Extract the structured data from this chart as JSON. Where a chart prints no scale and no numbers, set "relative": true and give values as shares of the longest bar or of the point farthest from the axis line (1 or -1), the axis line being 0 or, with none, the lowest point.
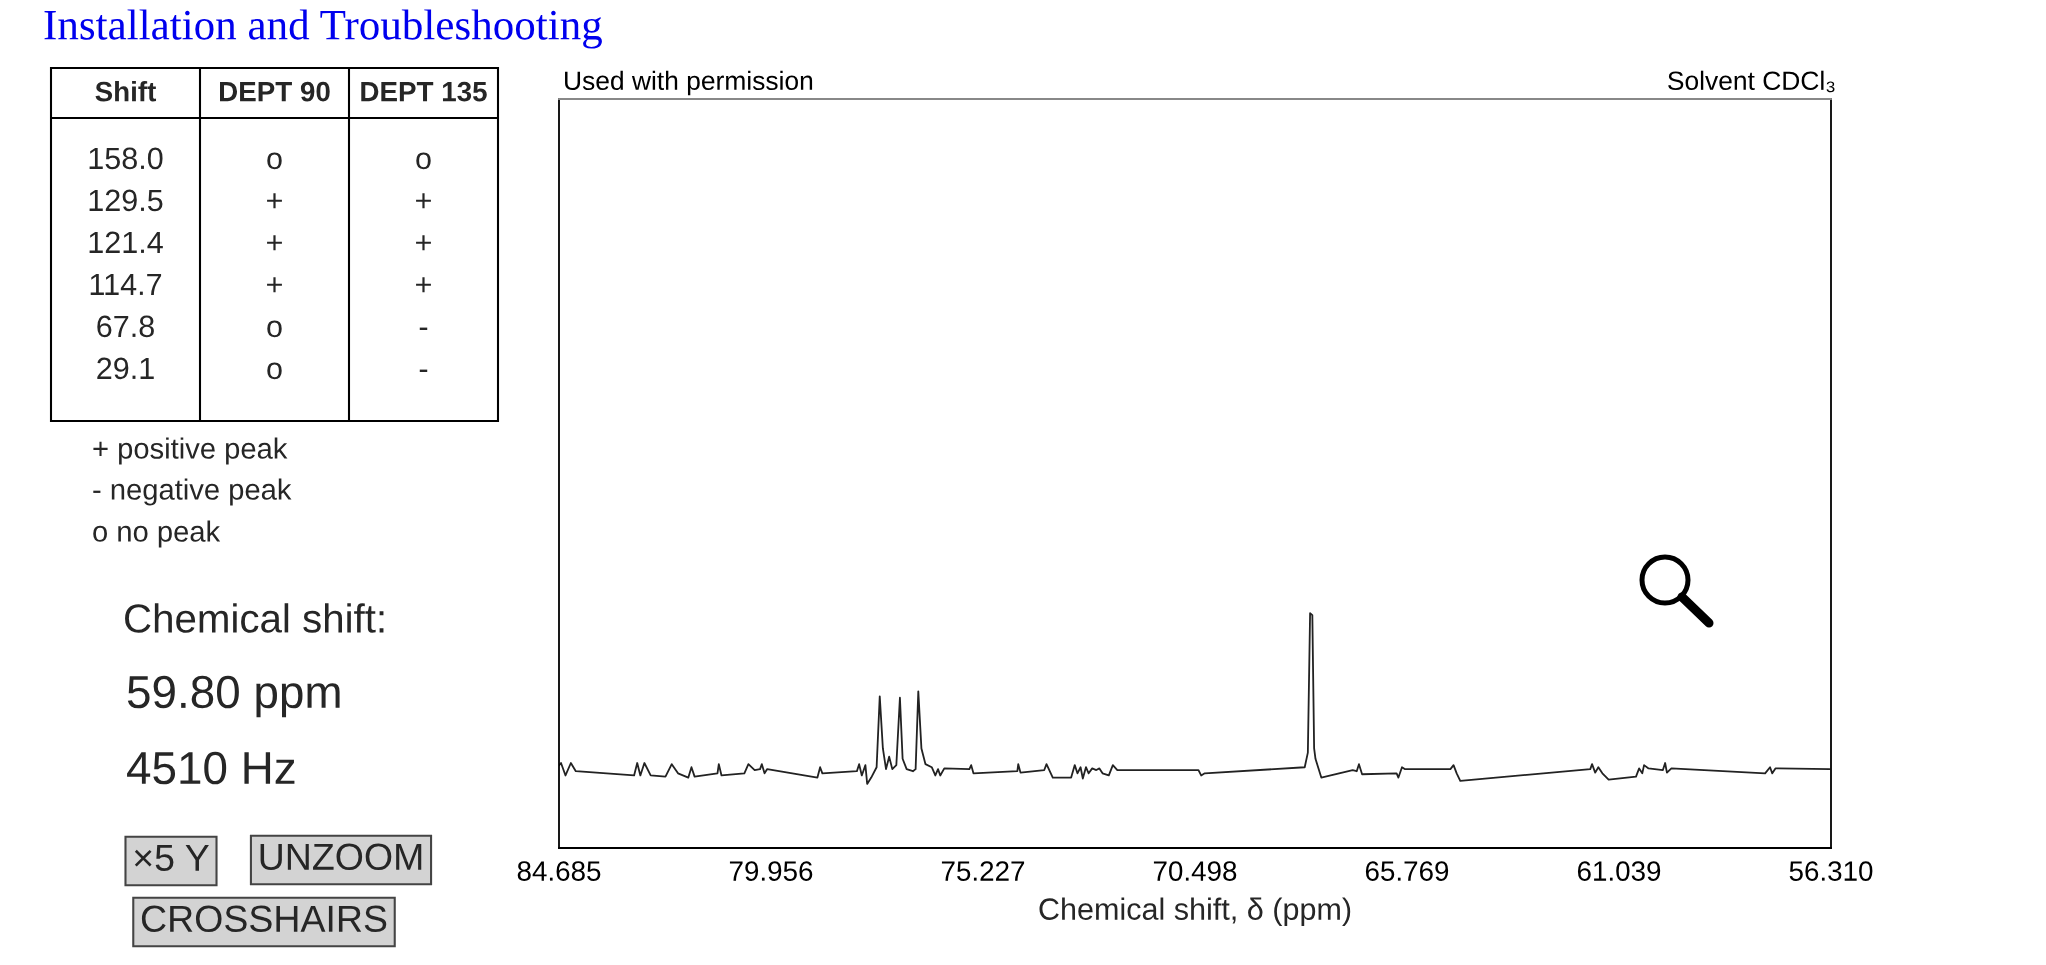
{
  "chart_data": [
    {
      "type": "line",
      "xlabel": "Chemical shift, δ (ppm)",
      "annotations": [
        "Used with permission",
        "Solvent CDCl₃"
      ],
      "color": "#222222",
      "relative": true,
      "xlim": [
        84.685,
        56.31
      ],
      "xticks": [
        84.685,
        79.956,
        75.227,
        70.498,
        65.769,
        61.039,
        {
          "value": 56.31,
          "label": "56.310"
        }
      ],
      "x": [
        84.68,
        84.64,
        84.54,
        84.42,
        84.31,
        83.01,
        82.94,
        82.87,
        82.78,
        82.64,
        82.31,
        82.17,
        82.03,
        81.8,
        81.73,
        81.66,
        81.15,
        81.12,
        81.06,
        80.55,
        80.46,
        80.32,
        80.2,
        80.16,
        80.1,
        80.04,
        78.92,
        78.86,
        78.81,
        78.04,
        77.99,
        77.93,
        77.85,
        77.81,
        77.72,
        77.6,
        77.53,
        77.46,
        77.39,
        77.32,
        77.25,
        77.16,
        77.08,
        77.02,
        76.93,
        76.79,
        76.73,
        76.67,
        76.6,
        76.51,
        76.37,
        76.29,
        76.23,
        76.18,
        76.09,
        75.53,
        75.49,
        75.44,
        74.46,
        74.44,
        74.39,
        73.86,
        73.81,
        73.67,
        73.26,
        73.18,
        73.12,
        73.05,
        73.0,
        72.93,
        72.87,
        72.79,
        72.7,
        72.63,
        72.56,
        72.42,
        72.33,
        72.23,
        70.42,
        70.36,
        70.28,
        68.05,
        67.98,
        67.93,
        67.88,
        67.84,
        67.81,
        67.68,
        66.98,
        66.89,
        66.84,
        66.77,
        66.0,
        65.96,
        65.88,
        65.82,
        64.8,
        64.73,
        64.66,
        64.58,
        61.68,
        61.64,
        61.57,
        61.5,
        61.41,
        61.27,
        60.66,
        60.59,
        60.52,
        60.48,
        60.38,
        60.06,
        60.01,
        59.97,
        59.87,
        57.78,
        57.67,
        57.62,
        57.55,
        56.34
      ],
      "values": [
        0.353,
        0.362,
        0.309,
        0.362,
        0.327,
        0.309,
        0.362,
        0.309,
        0.362,
        0.309,
        0.304,
        0.357,
        0.318,
        0.3,
        0.344,
        0.304,
        0.318,
        0.357,
        0.309,
        0.318,
        0.357,
        0.332,
        0.336,
        0.357,
        0.318,
        0.336,
        0.3,
        0.344,
        0.318,
        0.327,
        0.357,
        0.309,
        0.353,
        0.273,
        0.3,
        0.344,
        0.646,
        0.424,
        0.336,
        0.389,
        0.336,
        0.353,
        0.64,
        0.38,
        0.336,
        0.327,
        0.336,
        0.667,
        0.424,
        0.357,
        0.344,
        0.309,
        0.336,
        0.309,
        0.339,
        0.336,
        0.353,
        0.318,
        0.327,
        0.357,
        0.321,
        0.332,
        0.357,
        0.3,
        0.3,
        0.353,
        0.318,
        0.344,
        0.296,
        0.344,
        0.318,
        0.339,
        0.332,
        0.339,
        0.318,
        0.309,
        0.353,
        0.332,
        0.332,
        0.309,
        0.318,
        0.344,
        0.406,
        1.0,
        0.992,
        0.424,
        0.38,
        0.3,
        0.332,
        0.327,
        0.357,
        0.314,
        0.318,
        0.3,
        0.344,
        0.336,
        0.336,
        0.353,
        0.318,
        0.286,
        0.336,
        0.357,
        0.321,
        0.344,
        0.318,
        0.291,
        0.304,
        0.339,
        0.318,
        0.353,
        0.339,
        0.332,
        0.362,
        0.321,
        0.339,
        0.318,
        0.344,
        0.318,
        0.339,
        0.336
      ]
    },
    {
      "type": "other",
      "title": "Installation and Troubleshooting",
      "categories": [
        "Shift",
        "DEPT 90",
        "DEPT 135"
      ],
      "y_categories": [
        "158.0",
        "129.5",
        "121.4",
        "114.7",
        "67.8",
        "29.1"
      ],
      "cell_labels": [
        [
          "o",
          "o"
        ],
        [
          "+",
          "+"
        ],
        [
          "+",
          "+"
        ],
        [
          "+",
          "+"
        ],
        [
          "o",
          "-"
        ],
        [
          "o",
          "-"
        ]
      ],
      "annotations": [
        "+ positive peak",
        "- negative peak",
        "o no peak",
        "Chemical shift:",
        "59.80 ppm",
        "4510 Hz",
        "×5 Y",
        "UNZOOM",
        "CROSSHAIRS"
      ]
    }
  ]
}
